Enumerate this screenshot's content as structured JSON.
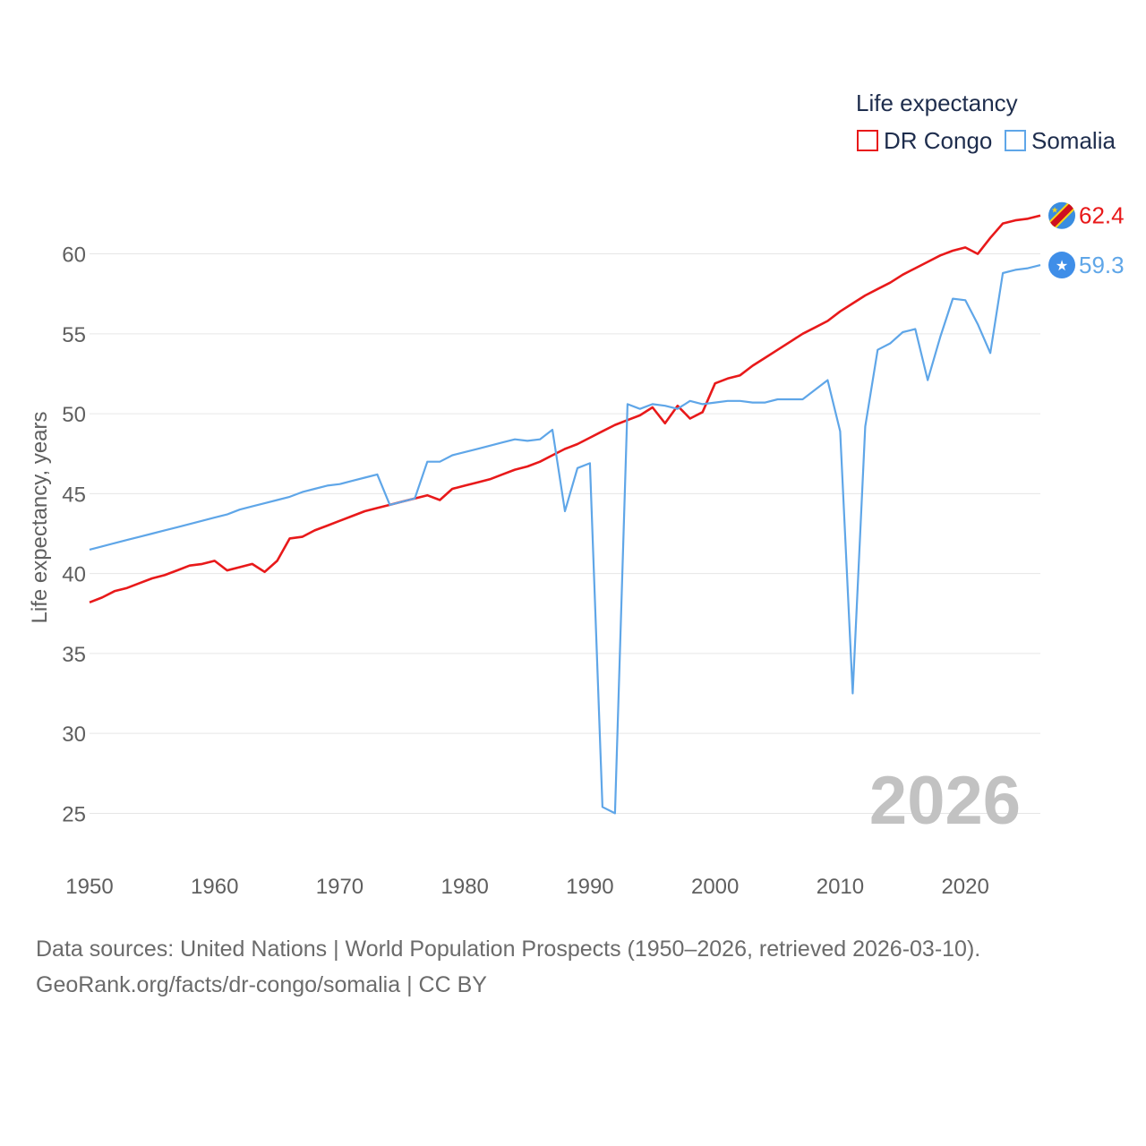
{
  "chart_data": {
    "type": "line",
    "title": "Life expectancy",
    "ylabel": "Life expectancy, years",
    "xlabel": "",
    "xlim": [
      1950,
      2026
    ],
    "ylim": [
      22,
      63
    ],
    "x_ticks": [
      1950,
      1960,
      1970,
      1980,
      1990,
      2000,
      2010,
      2020
    ],
    "y_ticks": [
      25,
      30,
      35,
      40,
      45,
      50,
      55,
      60
    ],
    "current_year_label": "2026",
    "legend_position": "top-right",
    "x": [
      1950,
      1951,
      1952,
      1953,
      1954,
      1955,
      1956,
      1957,
      1958,
      1959,
      1960,
      1961,
      1962,
      1963,
      1964,
      1965,
      1966,
      1967,
      1968,
      1969,
      1970,
      1971,
      1972,
      1973,
      1974,
      1975,
      1976,
      1977,
      1978,
      1979,
      1980,
      1981,
      1982,
      1983,
      1984,
      1985,
      1986,
      1987,
      1988,
      1989,
      1990,
      1991,
      1992,
      1993,
      1994,
      1995,
      1996,
      1997,
      1998,
      1999,
      2000,
      2001,
      2002,
      2003,
      2004,
      2005,
      2006,
      2007,
      2008,
      2009,
      2010,
      2011,
      2012,
      2013,
      2014,
      2015,
      2016,
      2017,
      2018,
      2019,
      2020,
      2021,
      2022,
      2023,
      2024,
      2025,
      2026
    ],
    "series": [
      {
        "name": "DR Congo",
        "color": "#e8191a",
        "flag_icon": "dr-congo-flag-icon",
        "end_label": "62.4",
        "values": [
          38.2,
          38.5,
          38.9,
          39.1,
          39.4,
          39.7,
          39.9,
          40.2,
          40.5,
          40.6,
          40.8,
          40.2,
          40.4,
          40.6,
          40.1,
          40.8,
          42.2,
          42.3,
          42.7,
          43.0,
          43.3,
          43.6,
          43.9,
          44.1,
          44.3,
          44.5,
          44.7,
          44.9,
          44.6,
          45.3,
          45.5,
          45.7,
          45.9,
          46.2,
          46.5,
          46.7,
          47.0,
          47.4,
          47.8,
          48.1,
          48.5,
          48.9,
          49.3,
          49.6,
          49.9,
          50.4,
          49.4,
          50.5,
          49.7,
          50.1,
          51.9,
          52.2,
          52.4,
          53.0,
          53.5,
          54.0,
          54.5,
          55.0,
          55.4,
          55.8,
          56.4,
          56.9,
          57.4,
          57.8,
          58.2,
          58.7,
          59.1,
          59.5,
          59.9,
          60.2,
          60.4,
          60.0,
          61.0,
          61.9,
          62.1,
          62.2,
          62.4
        ]
      },
      {
        "name": "Somalia",
        "color": "#5fa6e8",
        "flag_icon": "somalia-flag-icon",
        "end_label": "59.3",
        "values": [
          41.5,
          41.7,
          41.9,
          42.1,
          42.3,
          42.5,
          42.7,
          42.9,
          43.1,
          43.3,
          43.5,
          43.7,
          44.0,
          44.2,
          44.4,
          44.6,
          44.8,
          45.1,
          45.3,
          45.5,
          45.6,
          45.8,
          46.0,
          46.2,
          44.3,
          44.5,
          44.7,
          47.0,
          47.0,
          47.4,
          47.6,
          47.8,
          48.0,
          48.2,
          48.4,
          48.3,
          48.4,
          49.0,
          43.9,
          46.6,
          46.9,
          25.4,
          25.0,
          50.6,
          50.3,
          50.6,
          50.5,
          50.3,
          50.8,
          50.6,
          50.7,
          50.8,
          50.8,
          50.7,
          50.7,
          50.9,
          50.9,
          50.9,
          51.5,
          52.1,
          48.9,
          32.5,
          49.2,
          54.0,
          54.4,
          55.1,
          55.3,
          52.1,
          54.8,
          57.2,
          57.1,
          55.6,
          53.8,
          58.8,
          59.0,
          59.1,
          59.3
        ]
      }
    ]
  },
  "footer": {
    "sources": "Data sources: United Nations | World Population Prospects (1950–2026, retrieved 2026-03-10).",
    "site": "GeoRank.org/facts/dr-congo/somalia | CC BY"
  }
}
